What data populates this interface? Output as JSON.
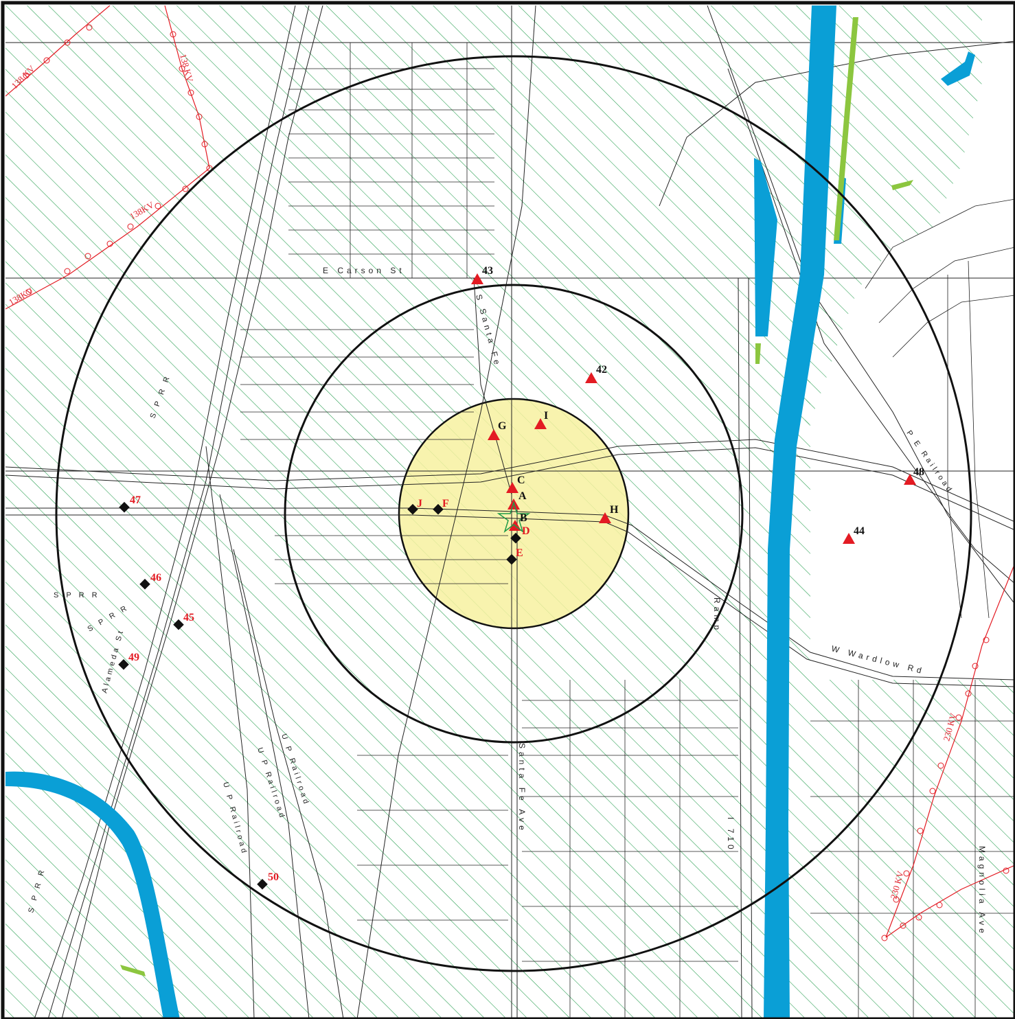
{
  "colors": {
    "hatch": "#1f9a49",
    "water": "#0a9fd6",
    "vegetation": "#8cc63f",
    "buffer_fill": "#f7f1a0",
    "ring": "#111111",
    "site_red": "#e31b23",
    "site_black": "#111111",
    "powerline": "#e31b23",
    "streets": "#222222"
  },
  "streets": {
    "carson": "E Carson St",
    "santa_fe_north": "S Santa Fe",
    "santa_fe_south": "Santa Fe Ave",
    "wardlow": "W Wardlow Rd",
    "magnolia": "Magnolia Ave",
    "i710": "I 710",
    "ramp": "Ramp"
  },
  "rail_labels": {
    "sprr": "S P R R",
    "up_railroad": "U P Railroad",
    "pe_railroad": "P E Railroad",
    "alameda": "Alameda St"
  },
  "powerline_labels": {
    "kv138": "138 KV",
    "kv138b": "138KV",
    "kv230": "230 KV"
  },
  "sites_triangle": [
    {
      "id": "43",
      "label": "43",
      "color": "black"
    },
    {
      "id": "42",
      "label": "42",
      "color": "black"
    },
    {
      "id": "48",
      "label": "48",
      "color": "black"
    },
    {
      "id": "44",
      "label": "44",
      "color": "black"
    },
    {
      "id": "G",
      "label": "G",
      "color": "black"
    },
    {
      "id": "I",
      "label": "I",
      "color": "black"
    },
    {
      "id": "C",
      "label": "C",
      "color": "black"
    },
    {
      "id": "A",
      "label": "A",
      "color": "black"
    },
    {
      "id": "B",
      "label": "B",
      "color": "black"
    },
    {
      "id": "D",
      "label": "D",
      "color": "red"
    },
    {
      "id": "H",
      "label": "H",
      "color": "black"
    }
  ],
  "sites_diamond": [
    {
      "id": "J",
      "label": "J"
    },
    {
      "id": "F",
      "label": "F"
    },
    {
      "id": "E",
      "label": "E"
    },
    {
      "id": "47",
      "label": "47"
    },
    {
      "id": "46",
      "label": "46"
    },
    {
      "id": "45",
      "label": "45"
    },
    {
      "id": "49",
      "label": "49"
    },
    {
      "id": "50",
      "label": "50"
    }
  ]
}
